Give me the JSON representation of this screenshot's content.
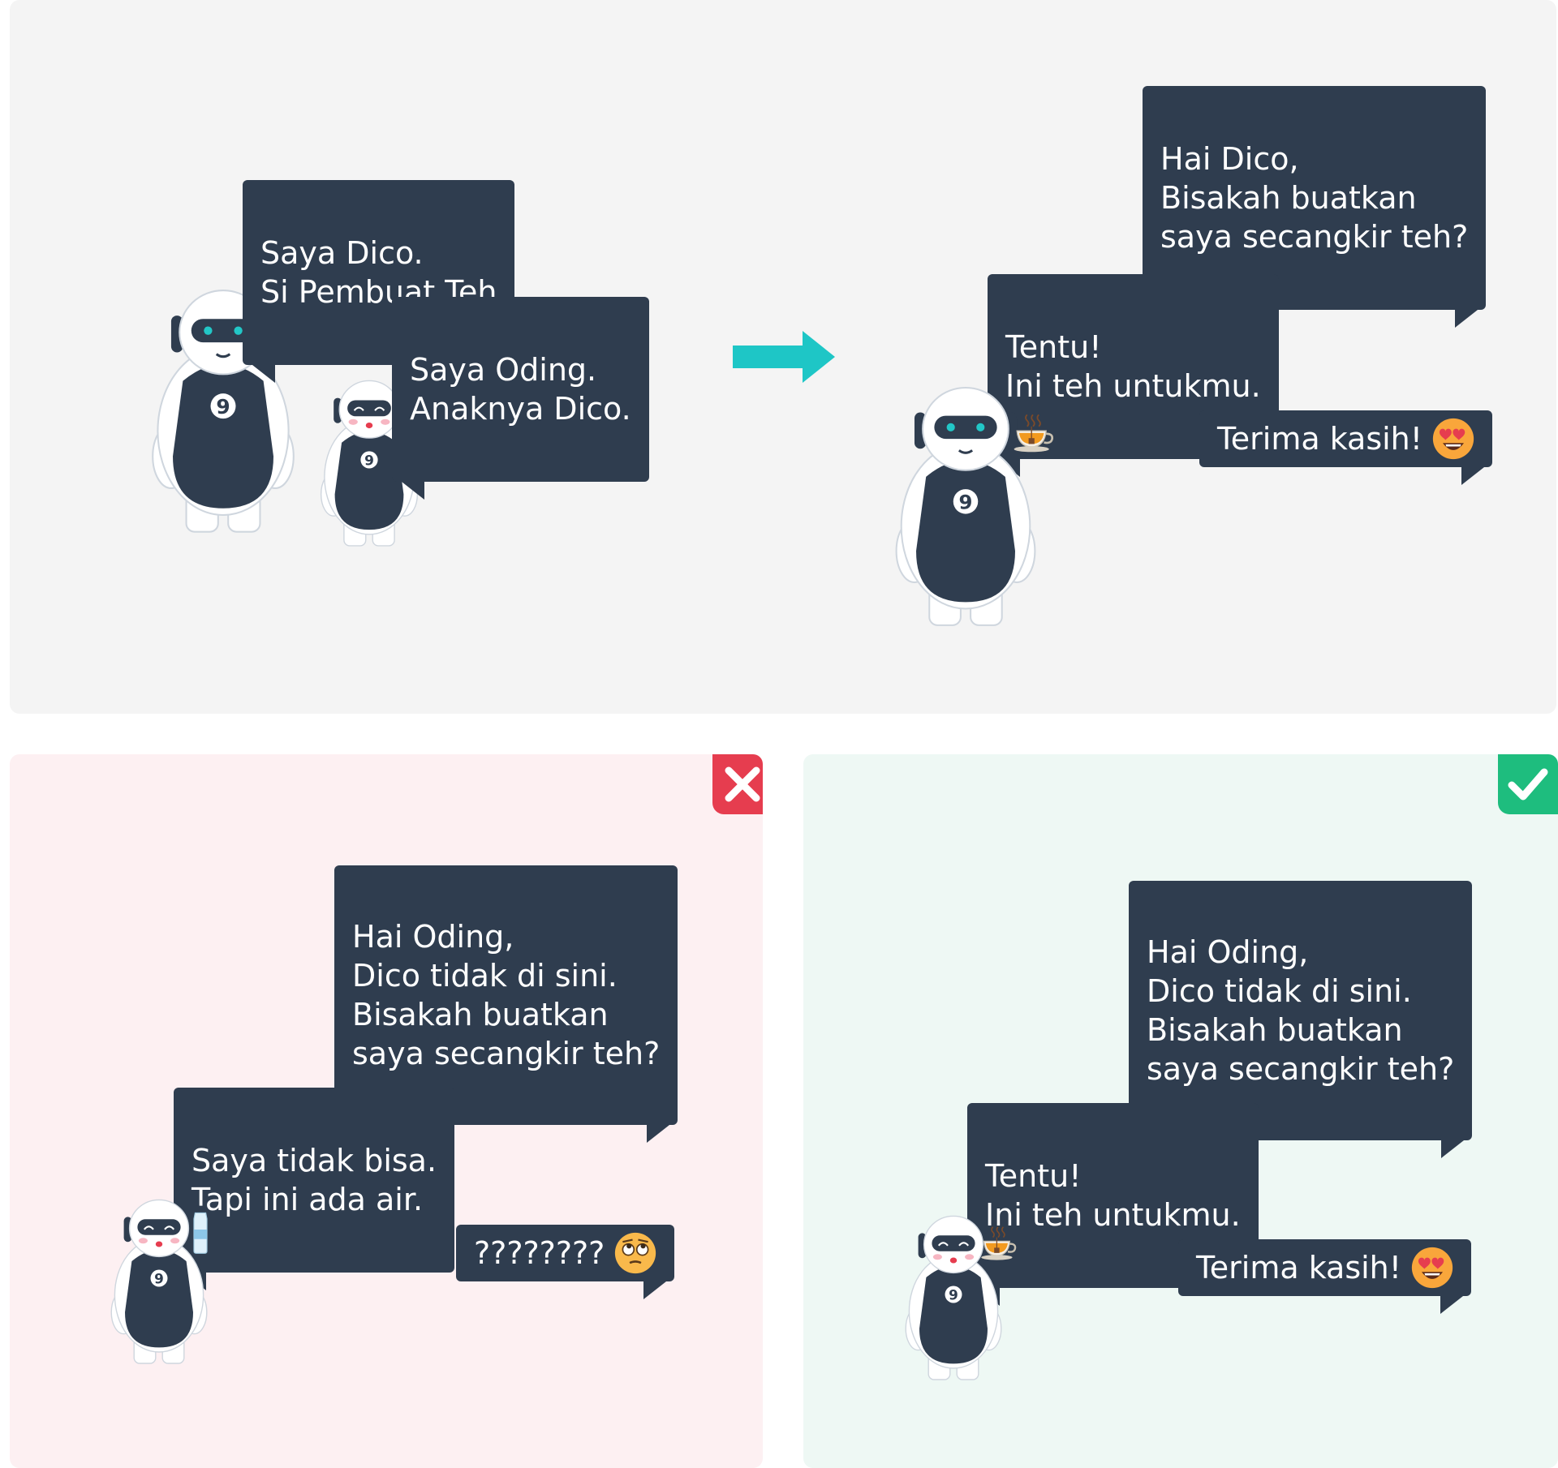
{
  "scene_top": {
    "dico_intro": "Saya Dico.\nSi Pembuat Teh",
    "oding_intro": "Saya Oding.\nAnaknya Dico.",
    "request": "Hai Dico,\nBisakah buatkan\nsaya secangkir teh?",
    "reply": "Tentu!\nIni teh untukmu.",
    "thanks": "Terima kasih!"
  },
  "scene_wrong": {
    "request": "Hai Oding,\nDico tidak di sini.\nBisakah buatkan\nsaya secangkir teh?",
    "reply": "Saya tidak bisa.\nTapi ini ada air.",
    "confused": "????????"
  },
  "scene_right": {
    "request": "Hai Oding,\nDico tidak di sini.\nBisakah buatkan\nsaya secangkir teh?",
    "reply": "Tentu!\nIni teh untukmu.",
    "thanks": "Terima kasih!"
  },
  "robot_badge": "9",
  "colors": {
    "bubble": "#2f3d4f",
    "arrow": "#1ec6c6",
    "wrong": "#e63d4f",
    "right": "#1ebd7e",
    "panel_top": "#f4f4f4",
    "panel_wrong": "#fdf0f2",
    "panel_right": "#eef8f4"
  },
  "icons": {
    "arrow": "right-arrow-icon",
    "wrong": "cross-icon",
    "right": "checkmark-icon",
    "tea": "tea-cup-icon",
    "water": "water-bottle-icon",
    "love_emoji": "heart-eyes-emoji-icon",
    "annoyed_emoji": "eye-roll-emoji-icon"
  }
}
